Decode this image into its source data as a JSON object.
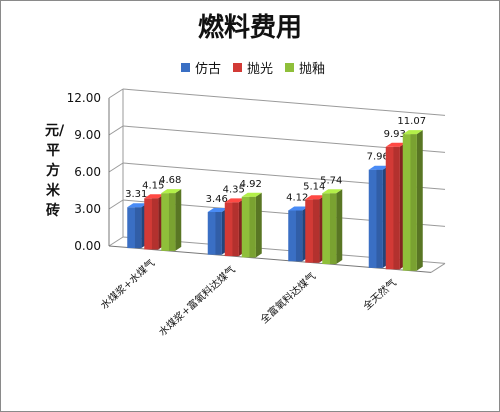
{
  "chart_data": {
    "type": "bar",
    "title": "燃料费用",
    "ylabel": "元/平方米砖",
    "categories": [
      "水煤浆+水煤气",
      "水煤浆+富氧料达煤气",
      "全富氧料达煤气",
      "全天然气"
    ],
    "series": [
      {
        "name": "仿古",
        "values": [
          3.31,
          3.46,
          4.12,
          7.96
        ],
        "color": "#3a6fc4"
      },
      {
        "name": "抛光",
        "values": [
          4.15,
          4.35,
          5.14,
          9.93
        ],
        "color": "#d23a36"
      },
      {
        "name": "抛釉",
        "values": [
          4.68,
          4.92,
          5.74,
          11.07
        ],
        "color": "#8fbf3a"
      }
    ],
    "ylim": [
      0,
      12
    ],
    "yticks": [
      "0.00",
      "3.00",
      "6.00",
      "9.00",
      "12.00"
    ],
    "grid": true,
    "legend": "top"
  }
}
